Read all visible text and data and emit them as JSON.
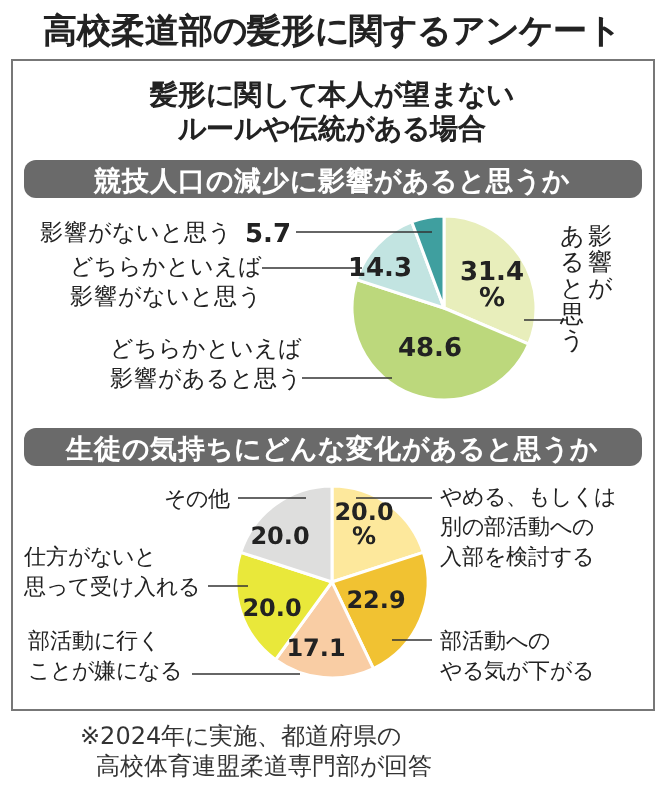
{
  "chart_data": [
    {
      "type": "pie",
      "title": "高校柔道部の髪形に関するアンケート",
      "subtitle": "髪形に関して本人が望まないルールや伝統がある場合",
      "annotations": [
        "競技人口の減少に影響があると思うか"
      ],
      "categories": [
        "影響があると思う",
        "どちらかといえば影響があると思う",
        "どちらかといえば影響がないと思う",
        "影響がないと思う"
      ],
      "values": [
        31.4,
        48.6,
        14.3,
        5.7
      ],
      "value_labels": [
        "31.4%",
        "48.6",
        "14.3",
        "5.7"
      ],
      "colors": [
        "#e8eebb",
        "#bcd87c",
        "#c2e4e1",
        "#3f9f9f"
      ]
    },
    {
      "type": "pie",
      "title": "生徒の気持ちにどんな変化があると思うか",
      "annotations": [
        "※2024年に実施、都道府県の高校体育連盟柔道専門部が回答"
      ],
      "categories": [
        "やめる、もしくは別の部活動への入部を検討する",
        "部活動へのやる気が下がる",
        "部活動に行くことが嫌になる",
        "仕方がないと思って受け入れる",
        "その他"
      ],
      "values": [
        20.0,
        22.9,
        17.1,
        20.0,
        20.0
      ],
      "value_labels": [
        "20.0%",
        "22.9",
        "17.1",
        "20.0",
        "20.0"
      ],
      "colors": [
        "#fde89c",
        "#f1c232",
        "#f9cda4",
        "#e9e83a",
        "#dededd"
      ]
    }
  ]
}
